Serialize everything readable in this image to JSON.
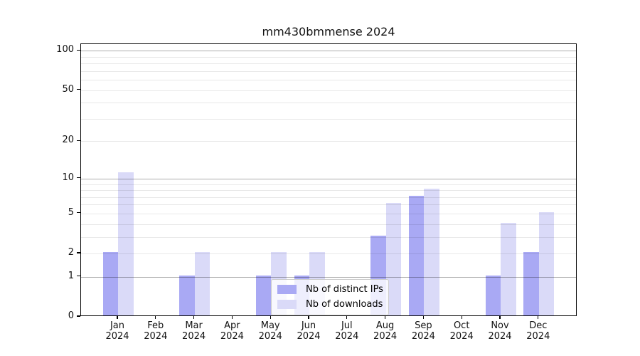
{
  "chart_data": {
    "type": "bar",
    "title": "mm430bmmense 2024",
    "categories": [
      "Jan",
      "Feb",
      "Mar",
      "Apr",
      "May",
      "Jun",
      "Jul",
      "Aug",
      "Sep",
      "Oct",
      "Nov",
      "Dec"
    ],
    "category_year": "2024",
    "series": [
      {
        "name": "Nb of distinct IPs",
        "color": "#a9a9f4",
        "values": [
          2,
          0,
          1,
          0,
          1,
          1,
          0,
          3,
          7,
          0,
          1,
          2
        ]
      },
      {
        "name": "Nb of downloads",
        "color": "#dadaf8",
        "values": [
          11,
          0,
          2,
          0,
          2,
          2,
          0,
          6,
          8,
          0,
          4,
          5
        ]
      }
    ],
    "yscale": "log1p",
    "ylim": [
      0,
      112
    ],
    "yticks": [
      0,
      1,
      2,
      5,
      10,
      20,
      50,
      100
    ],
    "grid": {
      "major_values": [
        1,
        10,
        100
      ],
      "minor_values": [
        2,
        3,
        4,
        5,
        6,
        7,
        8,
        9,
        20,
        30,
        40,
        50,
        60,
        70,
        80,
        90
      ],
      "on": true
    },
    "legend_position": "lower center, inside plot",
    "colors": {
      "bar_distinct_ips": "#a9a9f4",
      "bar_downloads": "#dadaf8",
      "grid_major": "#b0b0b0",
      "grid_minor": "#e8e8e8",
      "axis_frame": "#000000",
      "background": "#ffffff"
    }
  }
}
